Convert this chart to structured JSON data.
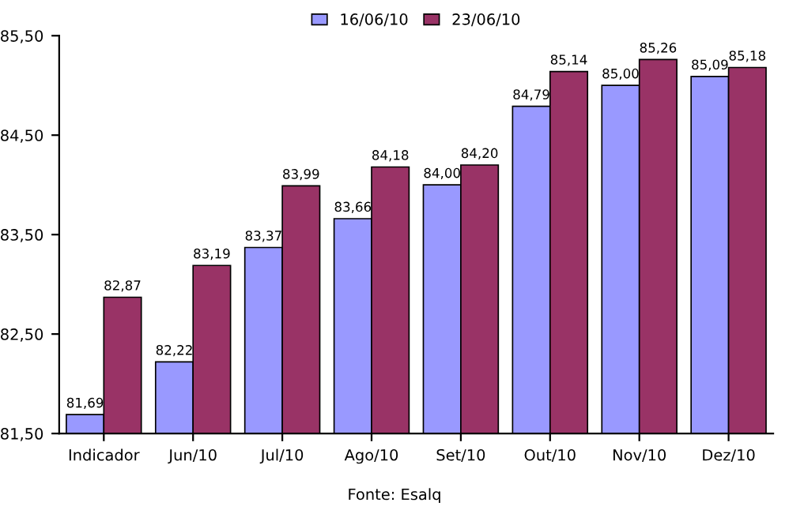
{
  "chart_data": {
    "type": "bar",
    "categories": [
      "Indicador",
      "Jun/10",
      "Jul/10",
      "Ago/10",
      "Set/10",
      "Out/10",
      "Nov/10",
      "Dez/10"
    ],
    "series": [
      {
        "name": "16/06/10",
        "color": "#9999ff",
        "values": [
          81.69,
          82.22,
          83.37,
          83.66,
          84.0,
          84.79,
          85.0,
          85.09
        ],
        "value_labels": [
          "81,69",
          "82,22",
          "83,37",
          "83,66",
          "84,00",
          "84,79",
          "85,00",
          "85,09"
        ]
      },
      {
        "name": "23/06/10",
        "color": "#993366",
        "values": [
          82.87,
          83.19,
          83.99,
          84.18,
          84.2,
          85.14,
          85.26,
          85.18
        ],
        "value_labels": [
          "82,87",
          "83,19",
          "83,99",
          "84,18",
          "84,20",
          "85,14",
          "85,26",
          "85,18"
        ]
      }
    ],
    "ylim": [
      81.5,
      85.5
    ],
    "yticks": [
      {
        "value": 81.5,
        "label": "81,50"
      },
      {
        "value": 82.5,
        "label": "82,50"
      },
      {
        "value": 83.5,
        "label": "83,50"
      },
      {
        "value": 84.5,
        "label": "84,50"
      },
      {
        "value": 85.5,
        "label": "85,50"
      }
    ],
    "legend": "top",
    "grid": false,
    "annotations": [
      "Fonte: Esalq"
    ]
  }
}
